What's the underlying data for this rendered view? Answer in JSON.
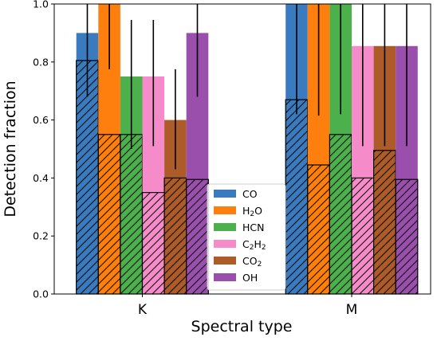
{
  "chart_data": {
    "type": "bar",
    "title": "",
    "xlabel": "Spectral type",
    "ylabel": "Detection fraction",
    "ylim": [
      0,
      1.0
    ],
    "y_ticks": [
      "0.0",
      "0.2",
      "0.4",
      "0.6",
      "0.8",
      "1.0"
    ],
    "categories": [
      "K",
      "M"
    ],
    "legend_position": "lower center",
    "bar_style": "solid bars show the upper fraction; overlaid hatched bars show the lower fraction; black vertical lines are error bars",
    "series": [
      {
        "name": "CO",
        "label_main": "CO",
        "label_sub": "",
        "label_tail": "",
        "color": "#3a7bbf",
        "upper": [
          0.9,
          1.0
        ],
        "lower": [
          0.805,
          0.67
        ],
        "err": [
          [
            0.68,
            1.0
          ],
          [
            0.62,
            1.0
          ]
        ]
      },
      {
        "name": "H2O",
        "label_main": "H",
        "label_sub": "2",
        "label_tail": "O",
        "color": "#ff7f0e",
        "upper": [
          1.0,
          1.0
        ],
        "lower": [
          0.55,
          0.445
        ],
        "err": [
          [
            0.775,
            1.0
          ],
          [
            0.615,
            1.0
          ]
        ]
      },
      {
        "name": "HCN",
        "label_main": "HCN",
        "label_sub": "",
        "label_tail": "",
        "color": "#4cb04c",
        "upper": [
          0.75,
          1.0
        ],
        "lower": [
          0.55,
          0.55
        ],
        "err": [
          [
            0.5,
            0.945
          ],
          [
            0.62,
            1.0
          ]
        ]
      },
      {
        "name": "C2H2",
        "label_main": "C",
        "label_sub": "2",
        "label_tail": "H",
        "label_sub2": "2",
        "color": "#f58bc8",
        "upper": [
          0.75,
          0.855
        ],
        "lower": [
          0.35,
          0.4
        ],
        "err": [
          [
            0.51,
            0.945
          ],
          [
            0.51,
            1.0
          ]
        ]
      },
      {
        "name": "CO2",
        "label_main": "CO",
        "label_sub": "2",
        "label_tail": "",
        "color": "#ad5b28",
        "upper": [
          0.6,
          0.855
        ],
        "lower": [
          0.4,
          0.495
        ],
        "err": [
          [
            0.43,
            0.775
          ],
          [
            0.51,
            1.0
          ]
        ]
      },
      {
        "name": "OH",
        "label_main": "OH",
        "label_sub": "",
        "label_tail": "",
        "color": "#9b4fad",
        "upper": [
          0.9,
          0.855
        ],
        "lower": [
          0.395,
          0.395
        ],
        "err": [
          [
            0.68,
            1.0
          ],
          [
            0.51,
            1.0
          ]
        ]
      }
    ]
  }
}
